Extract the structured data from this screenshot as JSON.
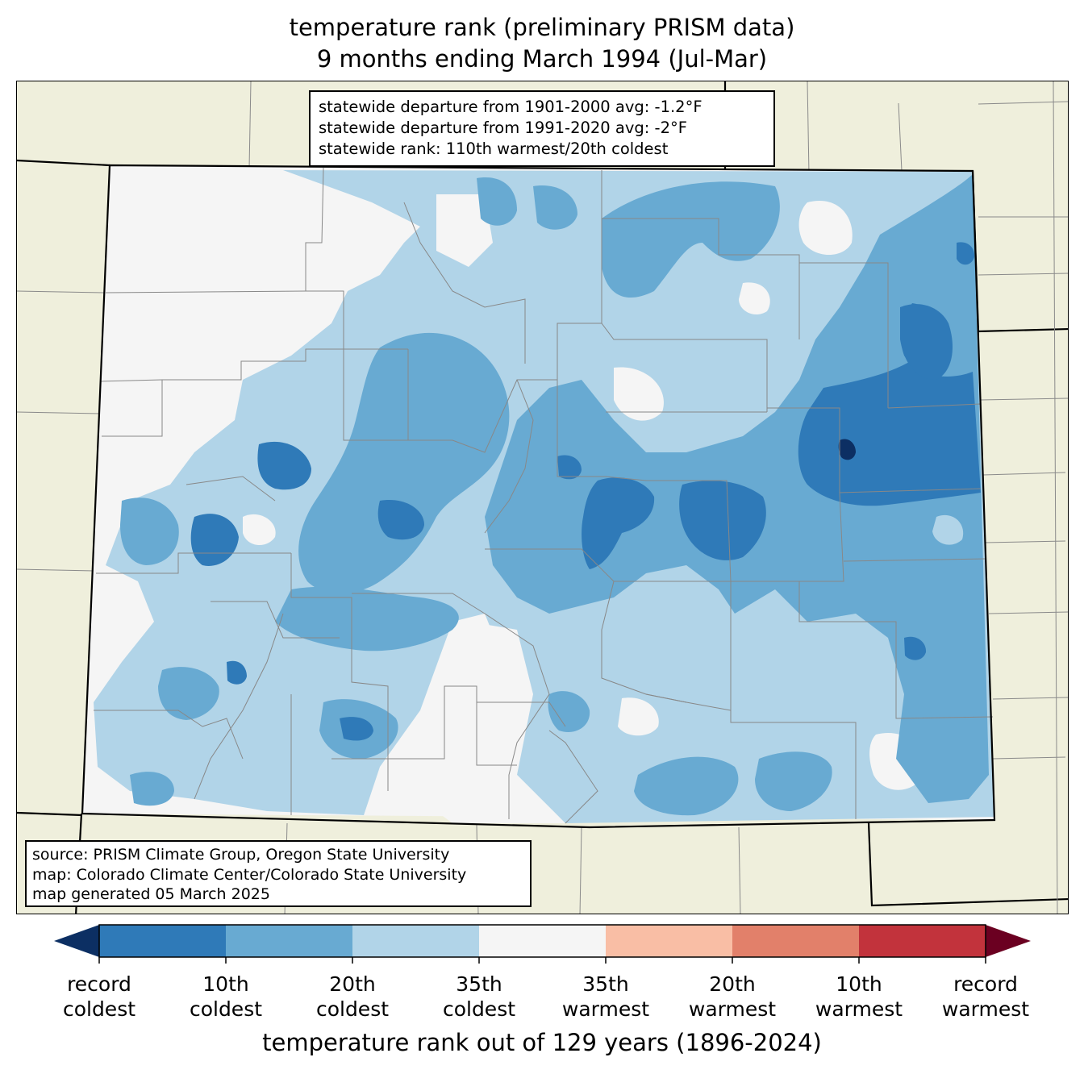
{
  "title": {
    "line1": "temperature rank (preliminary PRISM data)",
    "line2": "9 months ending March 1994 (Jul-Mar)"
  },
  "stats": {
    "line1": "statewide departure from 1901-2000 avg: -1.2°F",
    "line2": "statewide departure from 1991-2020 avg: -2°F",
    "line3": "statewide rank: 110th warmest/20th coldest"
  },
  "source": {
    "line1": "source: PRISM Climate Group, Oregon State University",
    "line2": "map: Colorado Climate Center/Colorado State University",
    "line3": "map generated 05 March 2025"
  },
  "colorbar": {
    "title": "temperature rank out of 129 years (1896-2024)",
    "extend_low_color": "#0c2f63",
    "extend_high_color": "#6b0021",
    "bins": [
      {
        "color": "#2f7ab8"
      },
      {
        "color": "#68aad2"
      },
      {
        "color": "#b1d4e8"
      },
      {
        "color": "#f5f5f5"
      },
      {
        "color": "#f9bea5"
      },
      {
        "color": "#e2806a"
      },
      {
        "color": "#c2333c"
      }
    ],
    "ticks": [
      {
        "line1": "record",
        "line2": "coldest"
      },
      {
        "line1": "10th",
        "line2": "coldest"
      },
      {
        "line1": "20th",
        "line2": "coldest"
      },
      {
        "line1": "35th",
        "line2": "coldest"
      },
      {
        "line1": "35th",
        "line2": "warmest"
      },
      {
        "line1": "20th",
        "line2": "warmest"
      },
      {
        "line1": "10th",
        "line2": "warmest"
      },
      {
        "line1": "record",
        "line2": "warmest"
      }
    ]
  },
  "map": {
    "land_color": "#efefdc",
    "state_border_color": "#000000",
    "county_border_color": "#888888"
  }
}
